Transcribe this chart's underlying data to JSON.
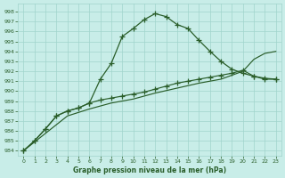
{
  "xlabel": "Graphe pression niveau de la mer (hPa)",
  "ylim": [
    983.5,
    998.8
  ],
  "xlim": [
    -0.5,
    23.5
  ],
  "yticks": [
    984,
    985,
    986,
    987,
    988,
    989,
    990,
    991,
    992,
    993,
    994,
    995,
    996,
    997,
    998
  ],
  "xticks": [
    0,
    1,
    2,
    3,
    4,
    5,
    6,
    7,
    8,
    9,
    10,
    11,
    12,
    13,
    14,
    15,
    16,
    17,
    18,
    19,
    20,
    21,
    22,
    23
  ],
  "bg_color": "#c8ede8",
  "grid_color": "#a0d4cc",
  "line_color": "#2a5e2a",
  "line1_x": [
    0,
    1,
    2,
    3,
    4,
    5,
    6,
    7,
    8,
    9,
    10,
    11,
    12,
    13,
    14,
    15,
    16,
    17,
    18,
    19,
    20,
    21,
    22,
    23
  ],
  "line1_y": [
    984.0,
    985.0,
    986.2,
    987.5,
    988.0,
    988.3,
    988.8,
    991.2,
    992.8,
    995.5,
    996.3,
    997.2,
    997.8,
    997.5,
    996.7,
    996.3,
    995.1,
    994.0,
    993.0,
    992.2,
    991.8,
    991.5,
    991.2,
    991.2
  ],
  "line2_x": [
    0,
    1,
    2,
    3,
    4,
    5,
    6,
    7,
    8,
    9,
    10,
    11,
    12,
    13,
    14,
    15,
    16,
    17,
    18,
    19,
    20,
    21,
    22,
    23
  ],
  "line2_y": [
    984.0,
    985.0,
    986.2,
    987.5,
    988.0,
    988.3,
    988.8,
    989.1,
    989.3,
    989.5,
    989.7,
    989.9,
    990.2,
    990.5,
    990.8,
    991.0,
    991.2,
    991.4,
    991.6,
    991.8,
    992.1,
    991.5,
    991.3,
    991.2
  ],
  "line3_x": [
    0,
    4,
    6,
    8,
    10,
    12,
    14,
    16,
    18,
    20,
    21,
    22,
    23
  ],
  "line3_y": [
    984.0,
    987.5,
    988.2,
    988.8,
    989.2,
    989.8,
    990.3,
    990.8,
    991.2,
    992.0,
    993.2,
    993.8,
    994.0
  ]
}
